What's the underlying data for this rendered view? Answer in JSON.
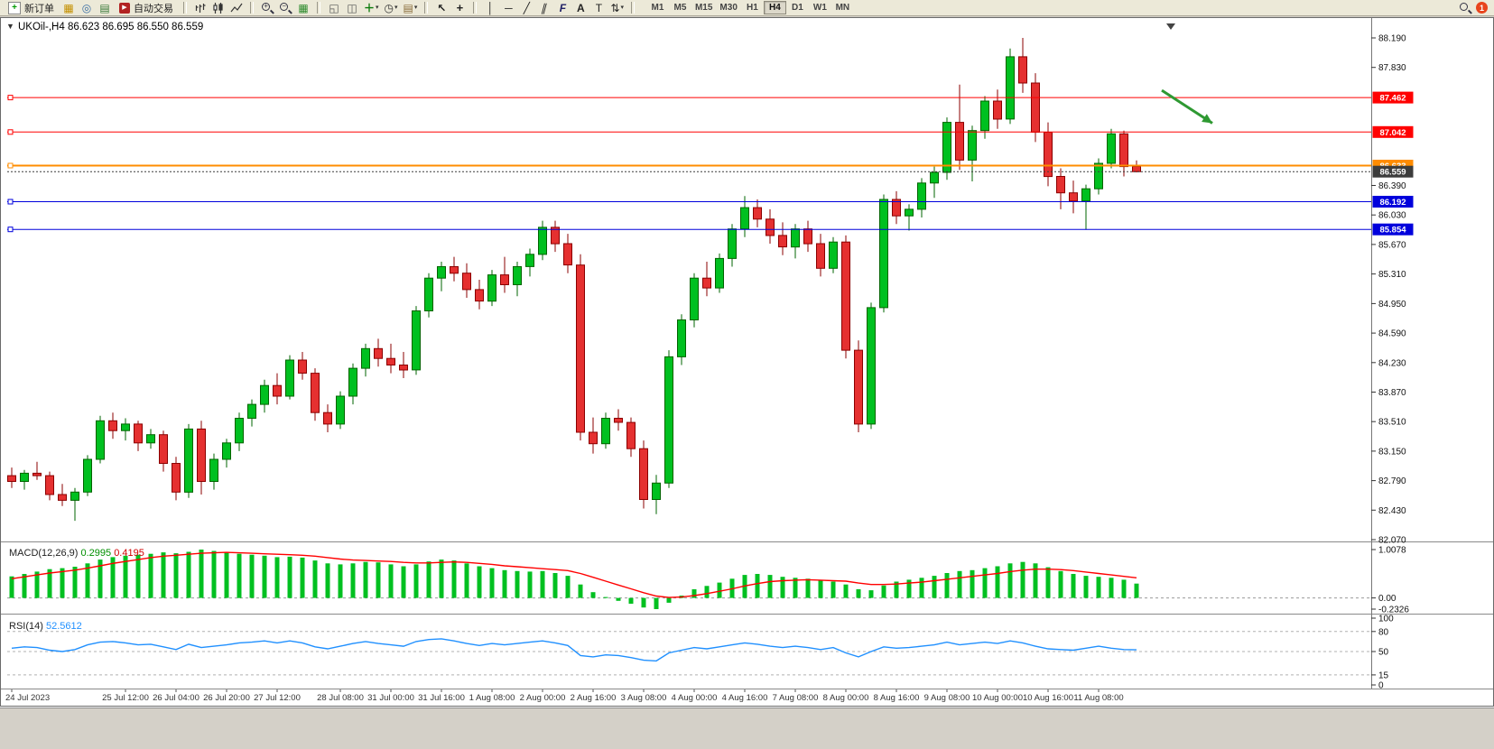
{
  "window": {
    "bg": "#d4d0c8",
    "toolbar_bg": "#ece9d8"
  },
  "toolbar": {
    "new_order_label": "新订单",
    "autotrading_label": "自动交易",
    "notification_count": "1",
    "timeframes": [
      {
        "label": "M1",
        "active": false
      },
      {
        "label": "M5",
        "active": false
      },
      {
        "label": "M15",
        "active": false
      },
      {
        "label": "M30",
        "active": false
      },
      {
        "label": "H1",
        "active": false
      },
      {
        "label": "H4",
        "active": true
      },
      {
        "label": "D1",
        "active": false
      },
      {
        "label": "W1",
        "active": false
      },
      {
        "label": "MN",
        "active": false
      }
    ]
  },
  "icons": {
    "new_order": "+",
    "autotrading": "▶",
    "market_watch": "▦",
    "navigator": "◎",
    "terminal": "▤",
    "tile_windows": "▦",
    "cascade": "◱",
    "tile_horizontal": "◫",
    "new_chart": "＋",
    "period": "◷",
    "template": "▤",
    "cursor": "↖",
    "crosshair": "+",
    "vline": "│",
    "hline": "─",
    "trendline": "╱",
    "channel": "∥",
    "fibonacci": "F",
    "text": "A",
    "text_label": "T",
    "arrows": "⇅",
    "caret": "▾",
    "expander": "▼",
    "zoom_in_sign": "+",
    "zoom_out_sign": "−"
  },
  "chart_header": {
    "symbol": "UKOil-,H4",
    "open": "86.623",
    "high": "86.695",
    "low": "86.550",
    "close": "86.559"
  },
  "chart_data": [
    {
      "type": "candlestick",
      "title": "UKOil-,H4",
      "timeframe": "H4",
      "y_range": {
        "top": 88.19,
        "bottom": 82.07
      },
      "y_ticks": [
        88.19,
        87.83,
        86.39,
        86.03,
        85.67,
        85.31,
        84.95,
        84.59,
        84.23,
        83.87,
        83.51,
        83.15,
        82.79,
        82.43,
        82.07
      ],
      "x_labels": [
        {
          "text": "24 Jul 2023",
          "bar": 0
        },
        {
          "text": "25 Jul 12:00",
          "bar": 9
        },
        {
          "text": "26 Jul 04:00",
          "bar": 13
        },
        {
          "text": "26 Jul 20:00",
          "bar": 17
        },
        {
          "text": "27 Jul 12:00",
          "bar": 21
        },
        {
          "text": "28 Jul 08:00",
          "bar": 26
        },
        {
          "text": "31 Jul 00:00",
          "bar": 30
        },
        {
          "text": "31 Jul 16:00",
          "bar": 34
        },
        {
          "text": "1 Aug 08:00",
          "bar": 38
        },
        {
          "text": "2 Aug 00:00",
          "bar": 42
        },
        {
          "text": "2 Aug 16:00",
          "bar": 46
        },
        {
          "text": "3 Aug 08:00",
          "bar": 50
        },
        {
          "text": "4 Aug 00:00",
          "bar": 54
        },
        {
          "text": "4 Aug 16:00",
          "bar": 58
        },
        {
          "text": "7 Aug 08:00",
          "bar": 62
        },
        {
          "text": "8 Aug 00:00",
          "bar": 66
        },
        {
          "text": "8 Aug 16:00",
          "bar": 70
        },
        {
          "text": "9 Aug 08:00",
          "bar": 74
        },
        {
          "text": "10 Aug 00:00",
          "bar": 78
        },
        {
          "text": "10 Aug 16:00",
          "bar": 82
        },
        {
          "text": "11 Aug 08:00",
          "bar": 86
        }
      ],
      "colors": {
        "up": "#00c020",
        "up_stroke": "#006400",
        "down": "#e53030",
        "down_stroke": "#8b0000"
      },
      "ohlc": [
        [
          82.85,
          82.95,
          82.7,
          82.78
        ],
        [
          82.78,
          82.92,
          82.68,
          82.88
        ],
        [
          82.88,
          83.02,
          82.8,
          82.85
        ],
        [
          82.85,
          82.9,
          82.55,
          82.62
        ],
        [
          82.62,
          82.75,
          82.48,
          82.55
        ],
        [
          82.55,
          82.7,
          82.3,
          82.65
        ],
        [
          82.65,
          83.1,
          82.6,
          83.05
        ],
        [
          83.05,
          83.58,
          83.0,
          83.52
        ],
        [
          83.52,
          83.62,
          83.3,
          83.4
        ],
        [
          83.4,
          83.55,
          83.28,
          83.48
        ],
        [
          83.48,
          83.52,
          83.15,
          83.25
        ],
        [
          83.25,
          83.42,
          83.18,
          83.35
        ],
        [
          83.35,
          83.4,
          82.9,
          83.0
        ],
        [
          83.0,
          83.08,
          82.55,
          82.65
        ],
        [
          82.65,
          83.48,
          82.58,
          83.42
        ],
        [
          83.42,
          83.52,
          82.62,
          82.78
        ],
        [
          82.78,
          83.12,
          82.68,
          83.05
        ],
        [
          83.05,
          83.3,
          82.95,
          83.25
        ],
        [
          83.25,
          83.62,
          83.15,
          83.55
        ],
        [
          83.55,
          83.78,
          83.45,
          83.72
        ],
        [
          83.72,
          84.02,
          83.62,
          83.95
        ],
        [
          83.95,
          84.1,
          83.72,
          83.82
        ],
        [
          83.82,
          84.32,
          83.78,
          84.26
        ],
        [
          84.26,
          84.36,
          84.02,
          84.1
        ],
        [
          84.1,
          84.16,
          83.52,
          83.62
        ],
        [
          83.62,
          83.72,
          83.38,
          83.48
        ],
        [
          83.48,
          83.88,
          83.42,
          83.82
        ],
        [
          83.82,
          84.22,
          83.72,
          84.16
        ],
        [
          84.16,
          84.46,
          84.06,
          84.4
        ],
        [
          84.4,
          84.52,
          84.18,
          84.28
        ],
        [
          84.28,
          84.46,
          84.1,
          84.2
        ],
        [
          84.2,
          84.36,
          84.04,
          84.14
        ],
        [
          84.14,
          84.92,
          84.08,
          84.86
        ],
        [
          84.86,
          85.32,
          84.78,
          85.26
        ],
        [
          85.26,
          85.46,
          85.1,
          85.4
        ],
        [
          85.4,
          85.52,
          85.22,
          85.32
        ],
        [
          85.32,
          85.44,
          85.02,
          85.12
        ],
        [
          85.12,
          85.24,
          84.88,
          84.98
        ],
        [
          84.98,
          85.36,
          84.92,
          85.3
        ],
        [
          85.3,
          85.52,
          85.08,
          85.18
        ],
        [
          85.18,
          85.46,
          85.04,
          85.4
        ],
        [
          85.4,
          85.62,
          85.28,
          85.55
        ],
        [
          85.55,
          85.96,
          85.48,
          85.88
        ],
        [
          85.88,
          85.96,
          85.58,
          85.68
        ],
        [
          85.68,
          85.8,
          85.32,
          85.42
        ],
        [
          85.42,
          85.55,
          83.28,
          83.38
        ],
        [
          83.38,
          83.56,
          83.12,
          83.24
        ],
        [
          83.24,
          83.62,
          83.18,
          83.55
        ],
        [
          83.55,
          83.66,
          83.4,
          83.5
        ],
        [
          83.5,
          83.56,
          83.08,
          83.18
        ],
        [
          83.18,
          83.28,
          82.45,
          82.56
        ],
        [
          82.56,
          82.86,
          82.38,
          82.76
        ],
        [
          82.76,
          84.38,
          82.7,
          84.3
        ],
        [
          84.3,
          84.82,
          84.2,
          84.75
        ],
        [
          84.75,
          85.32,
          84.66,
          85.26
        ],
        [
          85.26,
          85.46,
          85.04,
          85.14
        ],
        [
          85.14,
          85.56,
          85.08,
          85.5
        ],
        [
          85.5,
          85.92,
          85.4,
          85.86
        ],
        [
          85.86,
          86.26,
          85.76,
          86.12
        ],
        [
          86.12,
          86.22,
          85.88,
          85.98
        ],
        [
          85.98,
          86.1,
          85.68,
          85.78
        ],
        [
          85.78,
          85.94,
          85.54,
          85.64
        ],
        [
          85.64,
          85.92,
          85.5,
          85.86
        ],
        [
          85.86,
          85.96,
          85.58,
          85.68
        ],
        [
          85.68,
          85.8,
          85.28,
          85.38
        ],
        [
          85.38,
          85.76,
          85.32,
          85.7
        ],
        [
          85.7,
          85.78,
          84.28,
          84.38
        ],
        [
          84.38,
          84.5,
          83.38,
          83.48
        ],
        [
          83.48,
          84.96,
          83.42,
          84.9
        ],
        [
          84.9,
          86.28,
          84.84,
          86.22
        ],
        [
          86.22,
          86.32,
          85.92,
          86.02
        ],
        [
          86.02,
          86.16,
          85.84,
          86.1
        ],
        [
          86.1,
          86.48,
          86.0,
          86.42
        ],
        [
          86.42,
          86.62,
          86.24,
          86.55
        ],
        [
          86.55,
          87.22,
          86.46,
          87.16
        ],
        [
          87.16,
          87.62,
          86.58,
          86.7
        ],
        [
          86.7,
          87.12,
          86.44,
          87.06
        ],
        [
          87.06,
          87.48,
          86.96,
          87.42
        ],
        [
          87.42,
          87.56,
          87.08,
          87.2
        ],
        [
          87.2,
          88.06,
          87.14,
          87.96
        ],
        [
          87.96,
          88.19,
          87.52,
          87.64
        ],
        [
          87.64,
          87.76,
          86.92,
          87.04
        ],
        [
          87.04,
          87.16,
          86.38,
          86.5
        ],
        [
          86.5,
          86.6,
          86.1,
          86.3
        ],
        [
          86.3,
          86.45,
          86.05,
          86.2
        ],
        [
          86.2,
          86.4,
          85.85,
          86.35
        ],
        [
          86.35,
          86.72,
          86.28,
          86.66
        ],
        [
          86.66,
          87.08,
          86.6,
          87.02
        ],
        [
          87.02,
          87.06,
          86.5,
          86.62
        ],
        [
          86.623,
          86.695,
          86.55,
          86.559
        ]
      ],
      "hlines": [
        {
          "price": 87.462,
          "label": "87.462",
          "color": "#ff0000",
          "width": 1
        },
        {
          "price": 87.042,
          "label": "87.042",
          "color": "#ff0000",
          "width": 1
        },
        {
          "price": 86.633,
          "label": "86.633",
          "color": "#ff8c00",
          "width": 2
        },
        {
          "price": 86.192,
          "label": "86.192",
          "color": "#0000dc",
          "width": 1
        },
        {
          "price": 85.854,
          "label": "85.854",
          "color": "#0000dc",
          "width": 1
        }
      ],
      "current_price": {
        "value": 86.559,
        "label": "86.559",
        "color": "#3c3c3c"
      },
      "arrow": {
        "from_bar": 91,
        "from_price": 87.55,
        "to_bar": 95,
        "to_price": 87.15,
        "color": "#2e9932"
      }
    },
    {
      "type": "bar",
      "title": "MACD(12,26,9)",
      "main_value": "0.2995",
      "signal_value": "0.4195",
      "y_ticks": [
        {
          "v": 1.0078,
          "label": "1.0078"
        },
        {
          "v": 0,
          "label": "0.00"
        },
        {
          "v": -0.2326,
          "label": "-0.2326"
        }
      ],
      "colors": {
        "histogram": "#00c020",
        "signal": "#ff0000"
      },
      "histogram": [
        0.45,
        0.5,
        0.55,
        0.6,
        0.62,
        0.65,
        0.72,
        0.8,
        0.85,
        0.88,
        0.9,
        0.92,
        0.95,
        0.93,
        0.96,
        1.0078,
        0.98,
        0.95,
        0.92,
        0.9,
        0.88,
        0.85,
        0.86,
        0.84,
        0.78,
        0.72,
        0.7,
        0.72,
        0.75,
        0.74,
        0.7,
        0.66,
        0.7,
        0.76,
        0.8,
        0.78,
        0.72,
        0.66,
        0.62,
        0.58,
        0.56,
        0.55,
        0.56,
        0.52,
        0.46,
        0.28,
        0.12,
        0.02,
        -0.06,
        -0.12,
        -0.2,
        -0.2326,
        -0.1,
        0.05,
        0.18,
        0.25,
        0.32,
        0.4,
        0.48,
        0.5,
        0.48,
        0.44,
        0.42,
        0.4,
        0.36,
        0.34,
        0.28,
        0.18,
        0.16,
        0.26,
        0.34,
        0.38,
        0.42,
        0.46,
        0.52,
        0.56,
        0.58,
        0.62,
        0.66,
        0.72,
        0.75,
        0.72,
        0.64,
        0.56,
        0.5,
        0.46,
        0.44,
        0.42,
        0.38,
        0.2995
      ],
      "signal": [
        0.4,
        0.44,
        0.48,
        0.52,
        0.55,
        0.58,
        0.62,
        0.67,
        0.72,
        0.76,
        0.8,
        0.84,
        0.87,
        0.89,
        0.91,
        0.93,
        0.94,
        0.95,
        0.94,
        0.93,
        0.92,
        0.91,
        0.9,
        0.89,
        0.87,
        0.84,
        0.81,
        0.79,
        0.78,
        0.77,
        0.76,
        0.74,
        0.73,
        0.73,
        0.74,
        0.75,
        0.74,
        0.72,
        0.7,
        0.67,
        0.65,
        0.63,
        0.61,
        0.59,
        0.57,
        0.51,
        0.43,
        0.35,
        0.27,
        0.19,
        0.11,
        0.04,
        0.01,
        0.02,
        0.05,
        0.09,
        0.14,
        0.19,
        0.25,
        0.3,
        0.34,
        0.36,
        0.37,
        0.38,
        0.37,
        0.36,
        0.35,
        0.31,
        0.28,
        0.28,
        0.29,
        0.31,
        0.33,
        0.36,
        0.39,
        0.42,
        0.45,
        0.48,
        0.51,
        0.55,
        0.58,
        0.6,
        0.6,
        0.59,
        0.57,
        0.54,
        0.51,
        0.48,
        0.45,
        0.4195
      ]
    },
    {
      "type": "line",
      "title": "RSI(14)",
      "value": "52.5612",
      "y_ticks": [
        {
          "v": 100,
          "label": "100"
        },
        {
          "v": 80,
          "label": "80"
        },
        {
          "v": 50,
          "label": "50"
        },
        {
          "v": 15,
          "label": "15"
        },
        {
          "v": 0,
          "label": "0"
        }
      ],
      "levels": [
        80,
        50,
        15
      ],
      "colors": {
        "line": "#2090ff"
      },
      "values": [
        55,
        57,
        56,
        52,
        50,
        53,
        60,
        64,
        65,
        63,
        60,
        61,
        57,
        53,
        61,
        56,
        58,
        60,
        63,
        64,
        66,
        63,
        66,
        63,
        57,
        54,
        58,
        62,
        65,
        62,
        60,
        58,
        65,
        68,
        69,
        66,
        62,
        59,
        62,
        60,
        62,
        64,
        66,
        63,
        59,
        44,
        42,
        45,
        44,
        41,
        37,
        36,
        48,
        52,
        56,
        54,
        57,
        60,
        63,
        61,
        58,
        56,
        58,
        56,
        53,
        56,
        48,
        42,
        50,
        57,
        55,
        56,
        58,
        60,
        64,
        60,
        62,
        64,
        62,
        66,
        63,
        58,
        54,
        53,
        52,
        55,
        58,
        55,
        53,
        52.5612
      ]
    }
  ]
}
